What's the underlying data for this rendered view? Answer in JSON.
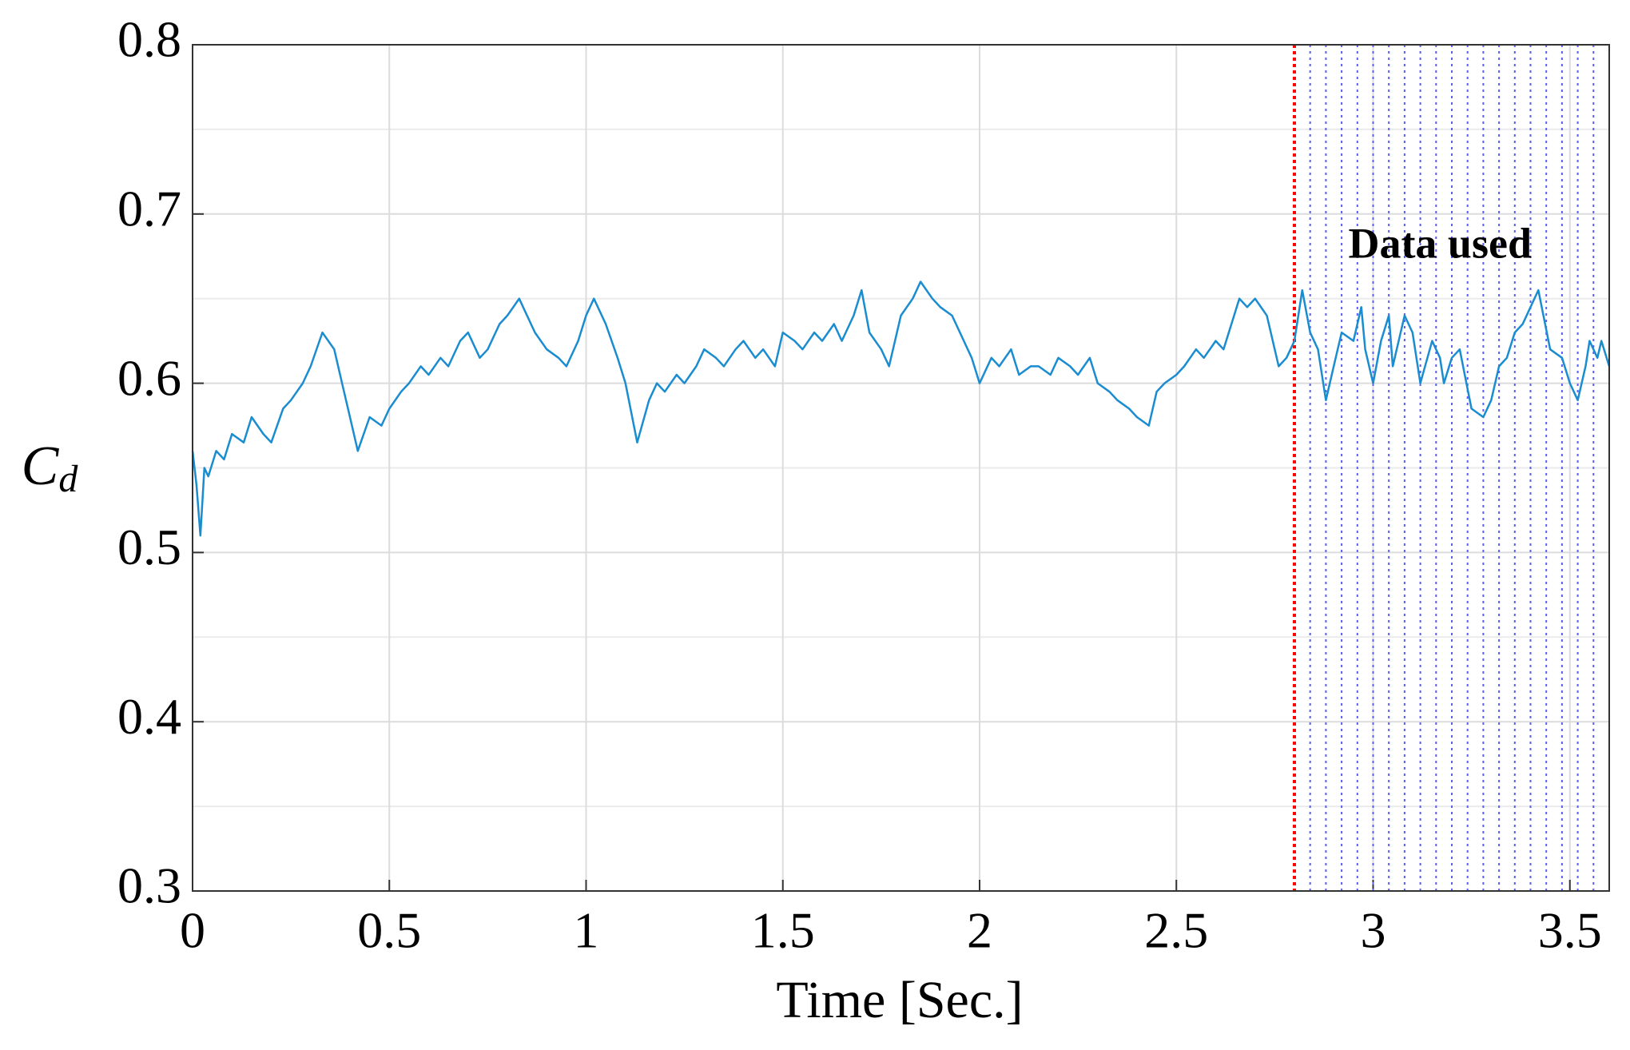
{
  "chart_data": {
    "type": "line",
    "xlabel": "Time [Sec.]",
    "ylabel": "C",
    "ylabel_subscript": "d",
    "annotation": {
      "text": "Data used",
      "x": 3.17,
      "y": 0.68
    },
    "xlim": [
      0,
      3.6
    ],
    "ylim": [
      0.3,
      0.8
    ],
    "xticks": [
      0,
      0.5,
      1,
      1.5,
      2,
      2.5,
      3,
      3.5
    ],
    "yticks": [
      0.3,
      0.4,
      0.5,
      0.6,
      0.7,
      0.8
    ],
    "yminorticks": [
      0.35,
      0.45,
      0.55,
      0.65,
      0.75
    ],
    "grid": true,
    "split_line": {
      "x": 2.8,
      "color": "#ff0000"
    },
    "sample_lines": {
      "color": "#5a5aff",
      "x": [
        2.84,
        2.88,
        2.92,
        2.96,
        3.0,
        3.04,
        3.08,
        3.12,
        3.16,
        3.2,
        3.24,
        3.28,
        3.32,
        3.36,
        3.4,
        3.44,
        3.48,
        3.52,
        3.56
      ]
    },
    "series": [
      {
        "color": "#1a8cd0",
        "x": [
          0,
          0.01,
          0.02,
          0.03,
          0.04,
          0.06,
          0.08,
          0.1,
          0.13,
          0.15,
          0.18,
          0.2,
          0.23,
          0.25,
          0.28,
          0.3,
          0.33,
          0.36,
          0.38,
          0.4,
          0.42,
          0.45,
          0.48,
          0.5,
          0.53,
          0.55,
          0.58,
          0.6,
          0.63,
          0.65,
          0.68,
          0.7,
          0.73,
          0.75,
          0.78,
          0.8,
          0.83,
          0.85,
          0.87,
          0.9,
          0.93,
          0.95,
          0.98,
          1.0,
          1.02,
          1.05,
          1.08,
          1.1,
          1.13,
          1.16,
          1.18,
          1.2,
          1.23,
          1.25,
          1.28,
          1.3,
          1.33,
          1.35,
          1.38,
          1.4,
          1.43,
          1.45,
          1.48,
          1.5,
          1.53,
          1.55,
          1.58,
          1.6,
          1.63,
          1.65,
          1.68,
          1.7,
          1.72,
          1.75,
          1.77,
          1.8,
          1.83,
          1.85,
          1.88,
          1.9,
          1.93,
          1.95,
          1.98,
          2.0,
          2.03,
          2.05,
          2.08,
          2.1,
          2.13,
          2.15,
          2.18,
          2.2,
          2.23,
          2.25,
          2.28,
          2.3,
          2.33,
          2.35,
          2.38,
          2.4,
          2.43,
          2.45,
          2.47,
          2.5,
          2.52,
          2.55,
          2.57,
          2.6,
          2.62,
          2.64,
          2.66,
          2.68,
          2.7,
          2.73,
          2.76,
          2.78,
          2.8,
          2.82,
          2.84,
          2.86,
          2.88,
          2.9,
          2.92,
          2.95,
          2.97,
          2.98,
          3.0,
          3.02,
          3.04,
          3.05,
          3.08,
          3.1,
          3.12,
          3.15,
          3.17,
          3.18,
          3.2,
          3.22,
          3.25,
          3.28,
          3.3,
          3.32,
          3.34,
          3.36,
          3.38,
          3.4,
          3.42,
          3.45,
          3.48,
          3.5,
          3.52,
          3.54,
          3.55,
          3.57,
          3.58,
          3.6
        ],
        "values": [
          0.56,
          0.54,
          0.51,
          0.55,
          0.545,
          0.56,
          0.555,
          0.57,
          0.565,
          0.58,
          0.57,
          0.565,
          0.585,
          0.59,
          0.6,
          0.61,
          0.63,
          0.62,
          0.6,
          0.58,
          0.56,
          0.58,
          0.575,
          0.585,
          0.595,
          0.6,
          0.61,
          0.605,
          0.615,
          0.61,
          0.625,
          0.63,
          0.615,
          0.62,
          0.635,
          0.64,
          0.65,
          0.64,
          0.63,
          0.62,
          0.615,
          0.61,
          0.625,
          0.64,
          0.65,
          0.635,
          0.615,
          0.6,
          0.565,
          0.59,
          0.6,
          0.595,
          0.605,
          0.6,
          0.61,
          0.62,
          0.615,
          0.61,
          0.62,
          0.625,
          0.615,
          0.62,
          0.61,
          0.63,
          0.625,
          0.62,
          0.63,
          0.625,
          0.635,
          0.625,
          0.64,
          0.655,
          0.63,
          0.62,
          0.61,
          0.64,
          0.65,
          0.66,
          0.65,
          0.645,
          0.64,
          0.63,
          0.615,
          0.6,
          0.615,
          0.61,
          0.62,
          0.605,
          0.61,
          0.61,
          0.605,
          0.615,
          0.61,
          0.605,
          0.615,
          0.6,
          0.595,
          0.59,
          0.585,
          0.58,
          0.575,
          0.595,
          0.6,
          0.605,
          0.61,
          0.62,
          0.615,
          0.625,
          0.62,
          0.635,
          0.65,
          0.645,
          0.65,
          0.64,
          0.61,
          0.615,
          0.625,
          0.655,
          0.63,
          0.62,
          0.59,
          0.61,
          0.63,
          0.625,
          0.645,
          0.62,
          0.6,
          0.625,
          0.64,
          0.61,
          0.64,
          0.63,
          0.6,
          0.625,
          0.615,
          0.6,
          0.615,
          0.62,
          0.585,
          0.58,
          0.59,
          0.61,
          0.615,
          0.63,
          0.635,
          0.645,
          0.655,
          0.62,
          0.615,
          0.6,
          0.59,
          0.61,
          0.625,
          0.615,
          0.625,
          0.61
        ]
      }
    ]
  }
}
